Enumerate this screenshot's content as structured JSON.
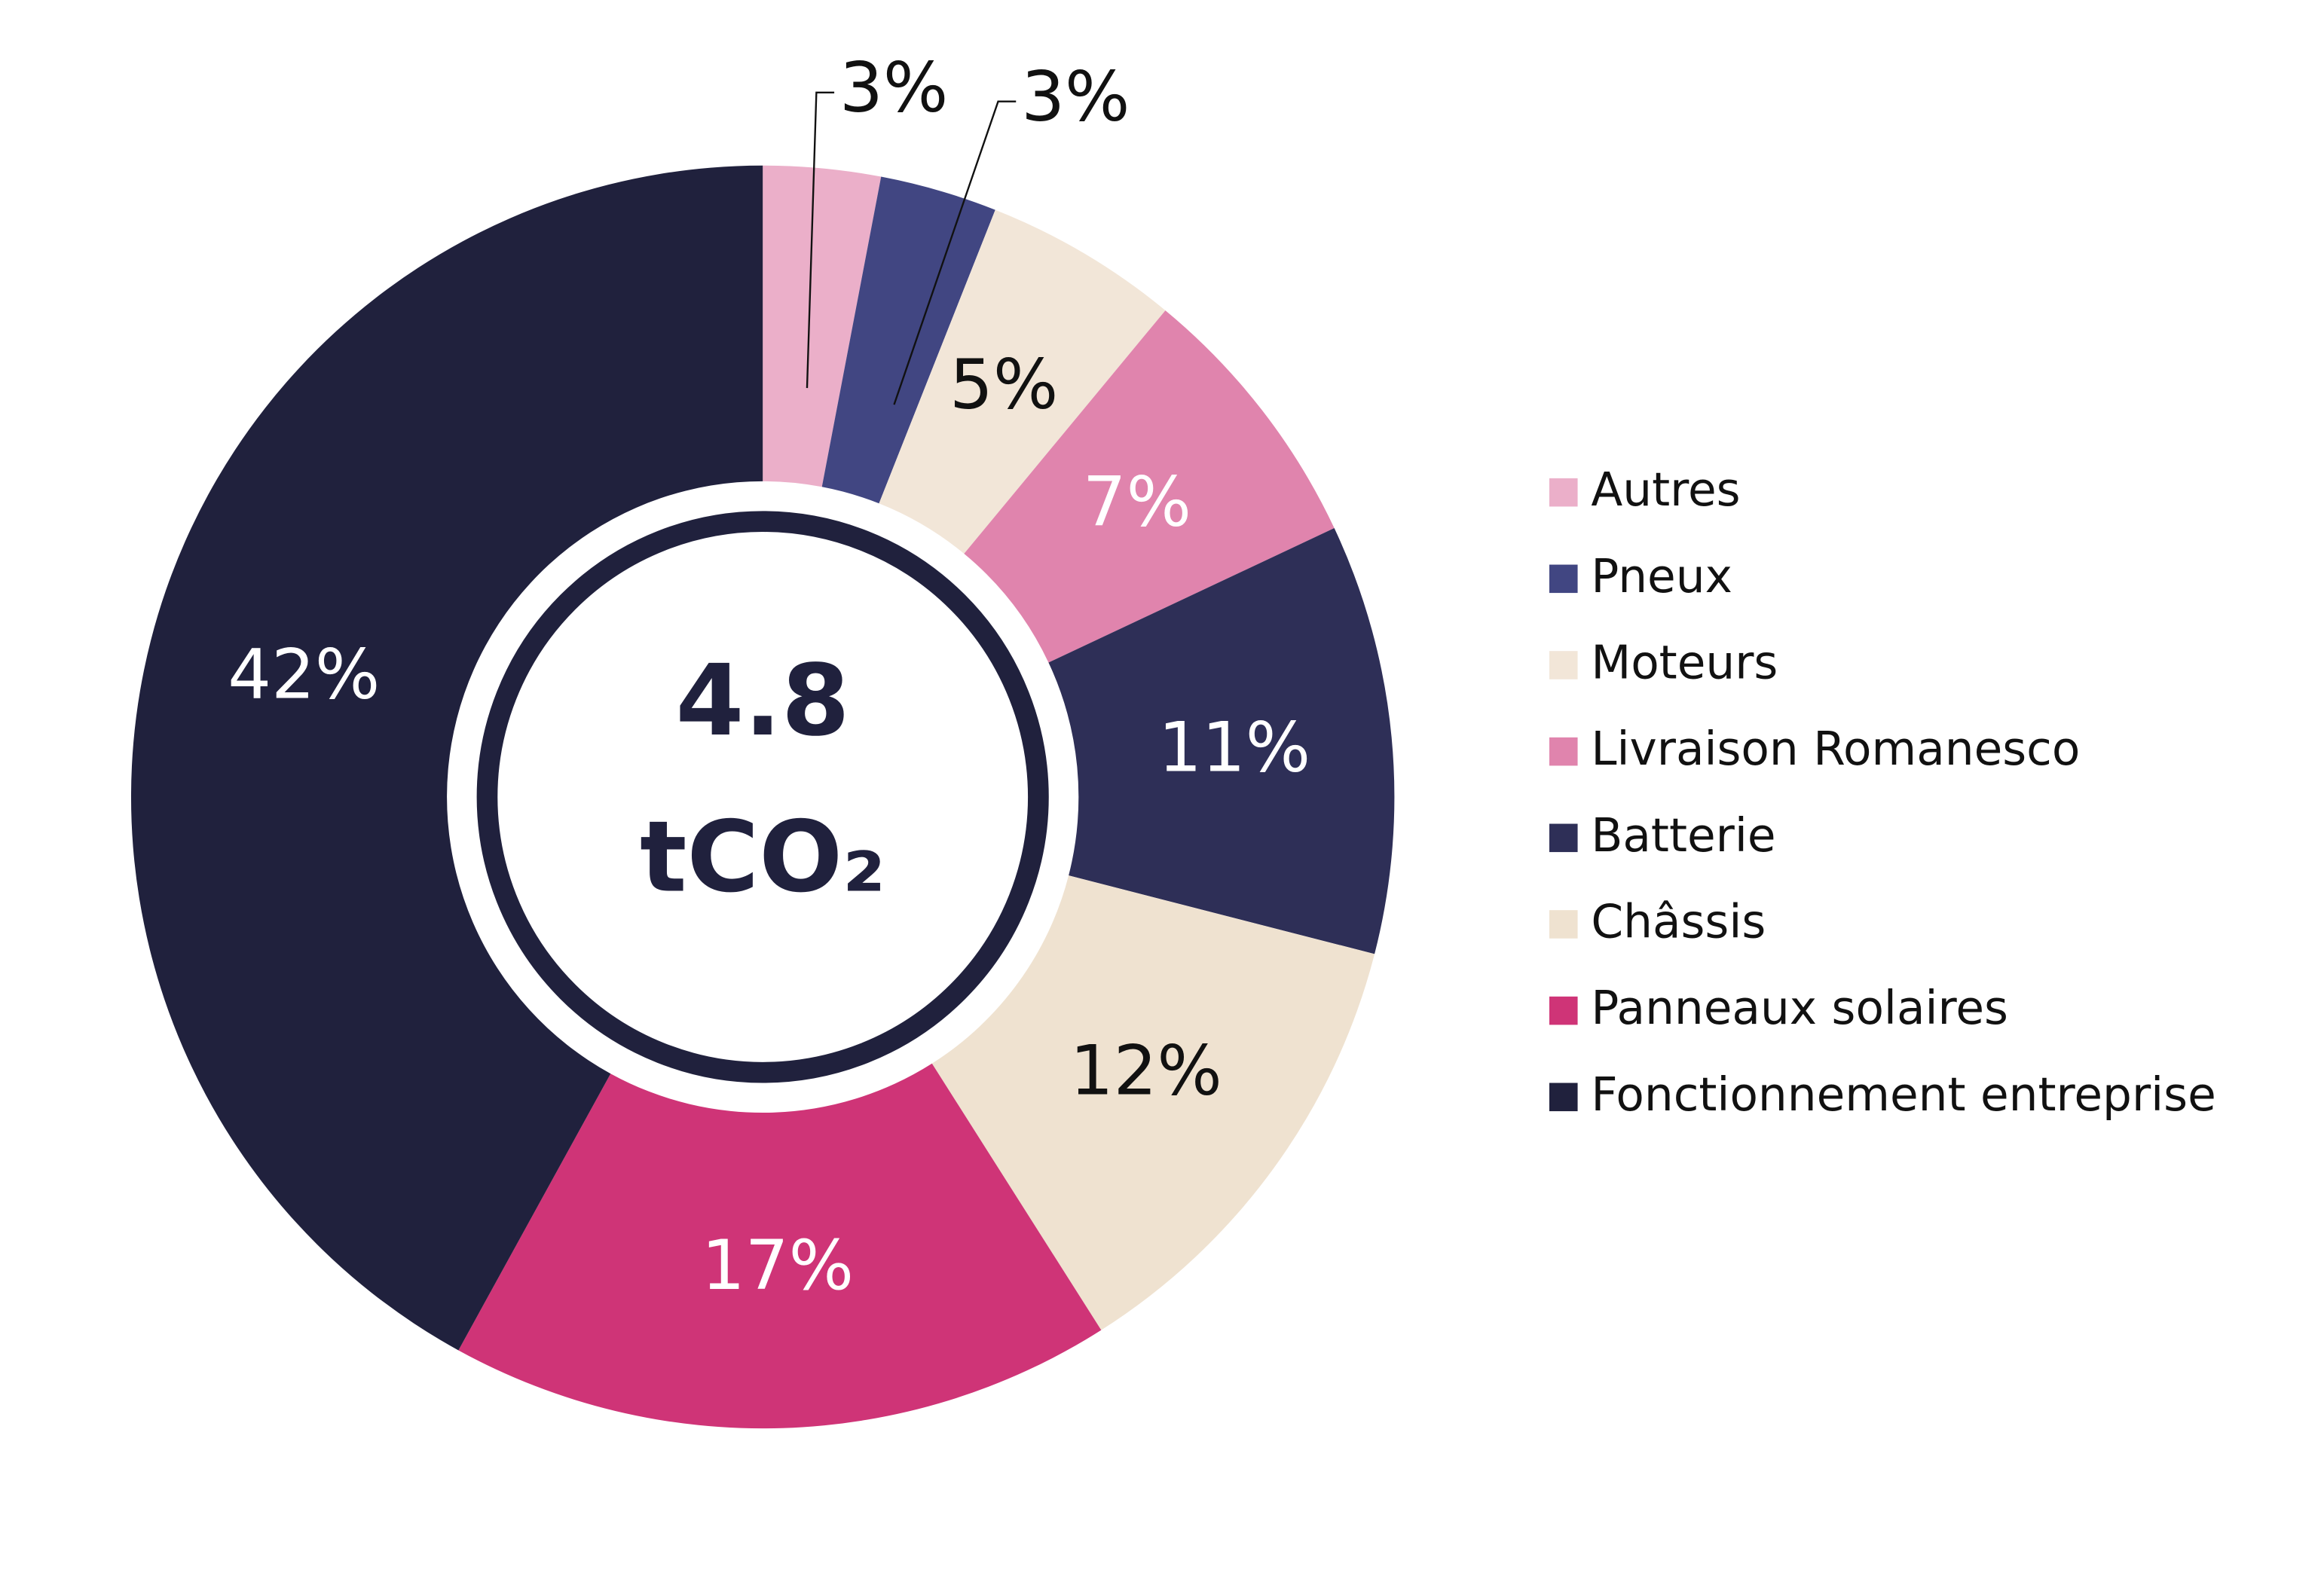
{
  "chart_data": {
    "type": "donut",
    "center_value": "4.8",
    "center_unit": "tCO₂",
    "categories": [
      "Autres",
      "Pneux",
      "Moteurs",
      "Livraison Romanesco",
      "Batterie",
      "Châssis",
      "Panneaux solaires",
      "Fonctionnement entreprise"
    ],
    "values": [
      3,
      3,
      5,
      7,
      11,
      12,
      17,
      42
    ],
    "value_labels": [
      "3%",
      "3%",
      "5%",
      "7%",
      "11%",
      "12%",
      "17%",
      "42%"
    ],
    "colors": [
      "#ebafc9",
      "#414682",
      "#f2e6d8",
      "#e084ad",
      "#2e2f57",
      "#efe2d0",
      "#cf3477",
      "#20213d"
    ],
    "label_colors": [
      "#111111",
      "#111111",
      "#111111",
      "#ffffff",
      "#ffffff",
      "#111111",
      "#ffffff",
      "#ffffff"
    ],
    "legend": "right"
  }
}
